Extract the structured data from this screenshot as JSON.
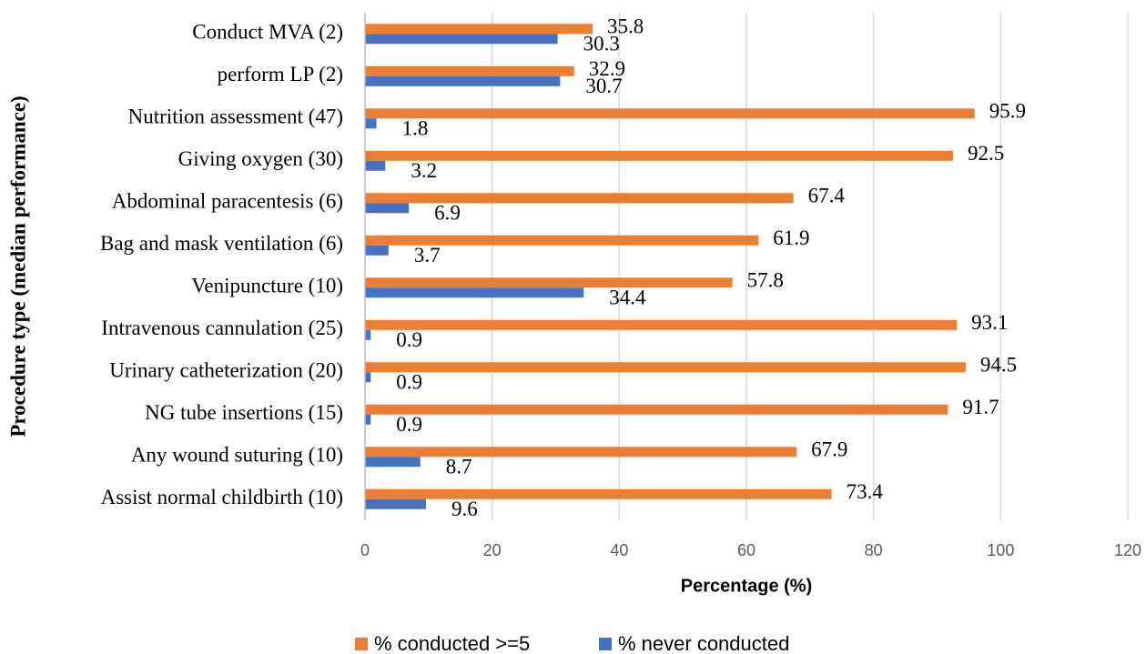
{
  "chart_data": {
    "type": "hbar",
    "y_label": "Procedure type (median performance)",
    "x_label": "Percentage (%)",
    "categories": [
      "Conduct MVA (2)",
      "perform LP (2)",
      "Nutrition assessment (47)",
      "Giving oxygen (30)",
      "Abdominal paracentesis (6)",
      "Bag and mask ventilation (6)",
      "Venipuncture (10)",
      "Intravenous cannulation  (25)",
      "Urinary catheterization (20)",
      "NG tube insertions (15)",
      "Any wound suturing (10)",
      "Assist normal childbirth (10)"
    ],
    "series": [
      {
        "name": "% conducted >=5",
        "color": "#ed7d31",
        "values": [
          35.8,
          32.9,
          95.9,
          92.5,
          67.4,
          61.9,
          57.8,
          93.1,
          94.5,
          91.7,
          67.9,
          73.4
        ]
      },
      {
        "name": "% never conducted",
        "color": "#4472c4",
        "values": [
          30.3,
          30.7,
          1.8,
          3.2,
          6.9,
          3.7,
          34.4,
          0.9,
          0.9,
          0.9,
          8.7,
          9.6
        ]
      }
    ],
    "xlim": [
      0,
      120
    ],
    "xticks": [
      0,
      20,
      40,
      60,
      80,
      100,
      120
    ],
    "grid": true,
    "legend": "bottom"
  }
}
